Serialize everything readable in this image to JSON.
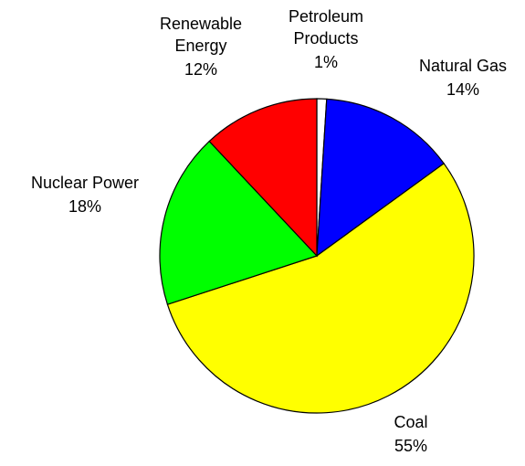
{
  "chart_data": {
    "type": "pie",
    "categories": [
      "Petroleum Products",
      "Natural Gas",
      "Coal",
      "Nuclear Power",
      "Renewable Energy"
    ],
    "values": [
      1,
      14,
      55,
      18,
      12
    ],
    "value_labels": [
      "1%",
      "14%",
      "55%",
      "18%",
      "12%"
    ],
    "colors": [
      "#ffffff",
      "#0000ff",
      "#ffff00",
      "#00ff00",
      "#ff0000"
    ]
  }
}
